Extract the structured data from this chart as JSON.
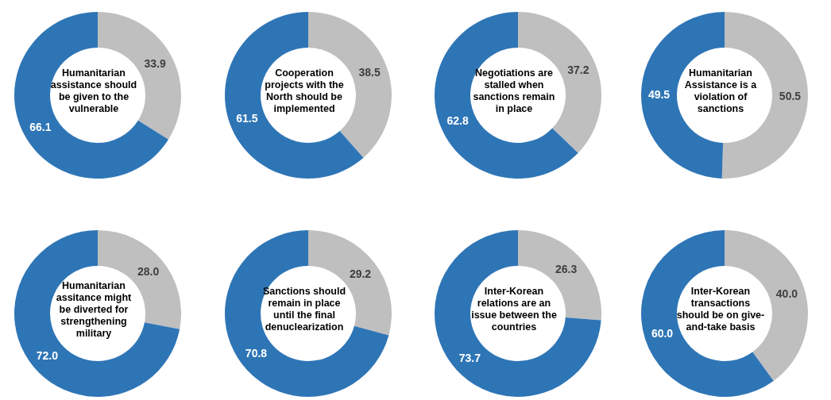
{
  "chart_data": [
    {
      "type": "donut",
      "title": "Humanitarian assistance should be given to the vulnerable",
      "categories": [
        null,
        null
      ],
      "values": [
        33.9,
        66.1
      ],
      "value_labels": [
        "33.9",
        "66.1"
      ],
      "colors": [
        "#bfbfbf",
        "#2e75b6"
      ]
    },
    {
      "type": "donut",
      "title": "Cooperation projects with the North should be implemented",
      "categories": [
        null,
        null
      ],
      "values": [
        38.5,
        61.5
      ],
      "value_labels": [
        "38.5",
        "61.5"
      ],
      "colors": [
        "#bfbfbf",
        "#2e75b6"
      ]
    },
    {
      "type": "donut",
      "title": "Negotiations are stalled when sanctions remain in place",
      "categories": [
        null,
        null
      ],
      "values": [
        37.2,
        62.8
      ],
      "value_labels": [
        "37.2",
        "62.8"
      ],
      "colors": [
        "#bfbfbf",
        "#2e75b6"
      ]
    },
    {
      "type": "donut",
      "title": "Humanitarian Assistance is a violation of sanctions",
      "categories": [
        null,
        null
      ],
      "values": [
        50.5,
        49.5
      ],
      "value_labels": [
        "50.5",
        "49.5"
      ],
      "colors": [
        "#bfbfbf",
        "#2e75b6"
      ]
    },
    {
      "type": "donut",
      "title": "Humanitarian assitance might be diverted for strengthening military",
      "categories": [
        null,
        null
      ],
      "values": [
        28.0,
        72.0
      ],
      "value_labels": [
        "28.0",
        "72.0"
      ],
      "colors": [
        "#bfbfbf",
        "#2e75b6"
      ]
    },
    {
      "type": "donut",
      "title": "Sanctions should remain in place until the final denuclearization",
      "categories": [
        null,
        null
      ],
      "values": [
        29.2,
        70.8
      ],
      "value_labels": [
        "29.2",
        "70.8"
      ],
      "colors": [
        "#bfbfbf",
        "#2e75b6"
      ]
    },
    {
      "type": "donut",
      "title": "Inter-Korean relations are an issue between the countries",
      "categories": [
        null,
        null
      ],
      "values": [
        26.3,
        73.7
      ],
      "value_labels": [
        "26.3",
        "73.7"
      ],
      "colors": [
        "#bfbfbf",
        "#2e75b6"
      ]
    },
    {
      "type": "donut",
      "title": "Inter-Korean transactions should be on give-and-take basis",
      "categories": [
        null,
        null
      ],
      "values": [
        40.0,
        60.0
      ],
      "value_labels": [
        "40.0",
        "60.0"
      ],
      "colors": [
        "#bfbfbf",
        "#2e75b6"
      ]
    }
  ]
}
